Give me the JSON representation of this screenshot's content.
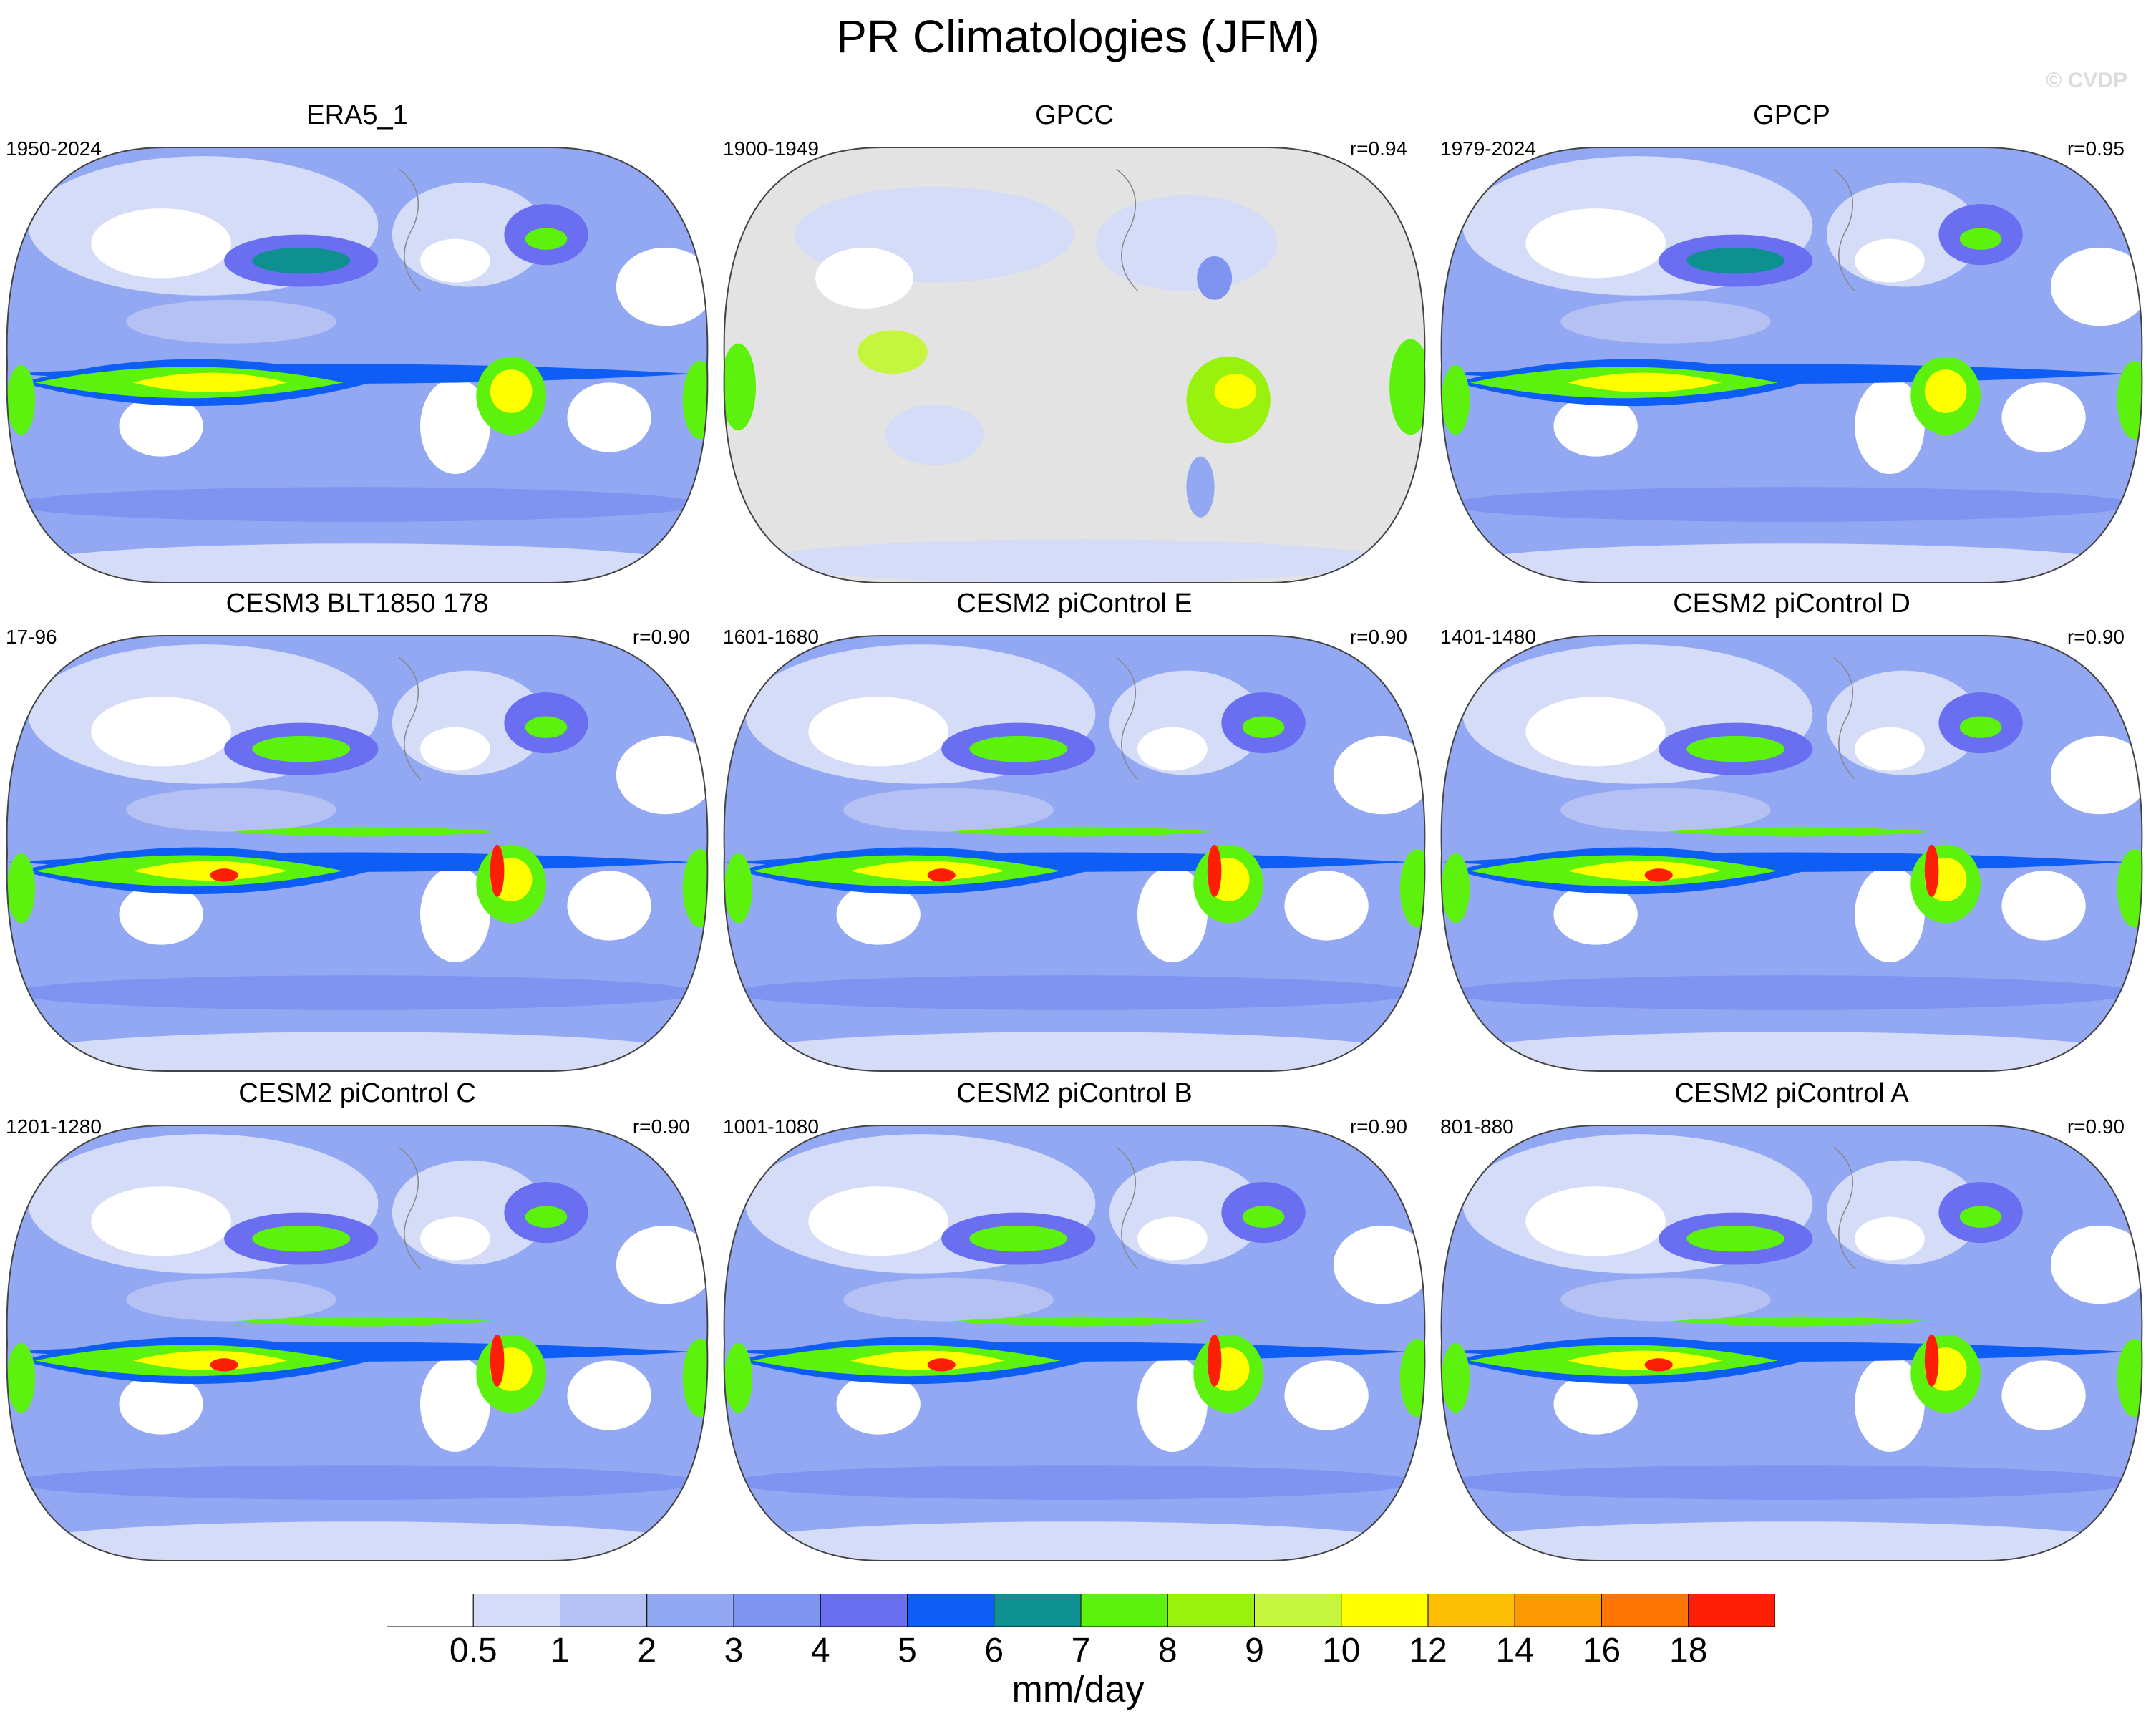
{
  "figure": {
    "title": "PR Climatologies (JFM)",
    "copyright": "© CVDP"
  },
  "chart_data": {
    "type": "map-grid",
    "variable": "PR",
    "season": "JFM",
    "projection": "Robinson (Pacific-centred)",
    "panels": [
      {
        "name": "ERA5_1",
        "years": "1950-2024",
        "r": "",
        "kind": "full"
      },
      {
        "name": "GPCC",
        "years": "1900-1949",
        "r": "r=0.94",
        "kind": "land"
      },
      {
        "name": "GPCP",
        "years": "1979-2024",
        "r": "r=0.95",
        "kind": "full"
      },
      {
        "name": "CESM3 BLT1850 178",
        "years": "17-96",
        "r": "r=0.90",
        "kind": "model"
      },
      {
        "name": "CESM2 piControl E",
        "years": "1601-1680",
        "r": "r=0.90",
        "kind": "model"
      },
      {
        "name": "CESM2 piControl D",
        "years": "1401-1480",
        "r": "r=0.90",
        "kind": "model"
      },
      {
        "name": "CESM2 piControl C",
        "years": "1201-1280",
        "r": "r=0.90",
        "kind": "model"
      },
      {
        "name": "CESM2 piControl B",
        "years": "1001-1080",
        "r": "r=0.90",
        "kind": "model"
      },
      {
        "name": "CESM2 piControl A",
        "years": "801-880",
        "r": "r=0.90",
        "kind": "model"
      }
    ],
    "colorbar": {
      "units": "mm/day",
      "levels": [
        "0.5",
        "1",
        "2",
        "3",
        "4",
        "5",
        "6",
        "7",
        "8",
        "9",
        "10",
        "12",
        "14",
        "16",
        "18"
      ],
      "colors": [
        "#ffffff",
        "#d5dcf7",
        "#b4c1f2",
        "#93a8f2",
        "#7f93f0",
        "#6a6ef0",
        "#0e5ef5",
        "#0e9090",
        "#5cf20e",
        "#98f20e",
        "#c6f53e",
        "#ffff00",
        "#fcbf05",
        "#fc9905",
        "#fc7505",
        "#fc1f05"
      ]
    },
    "missing_color": "#e3e3e3"
  }
}
